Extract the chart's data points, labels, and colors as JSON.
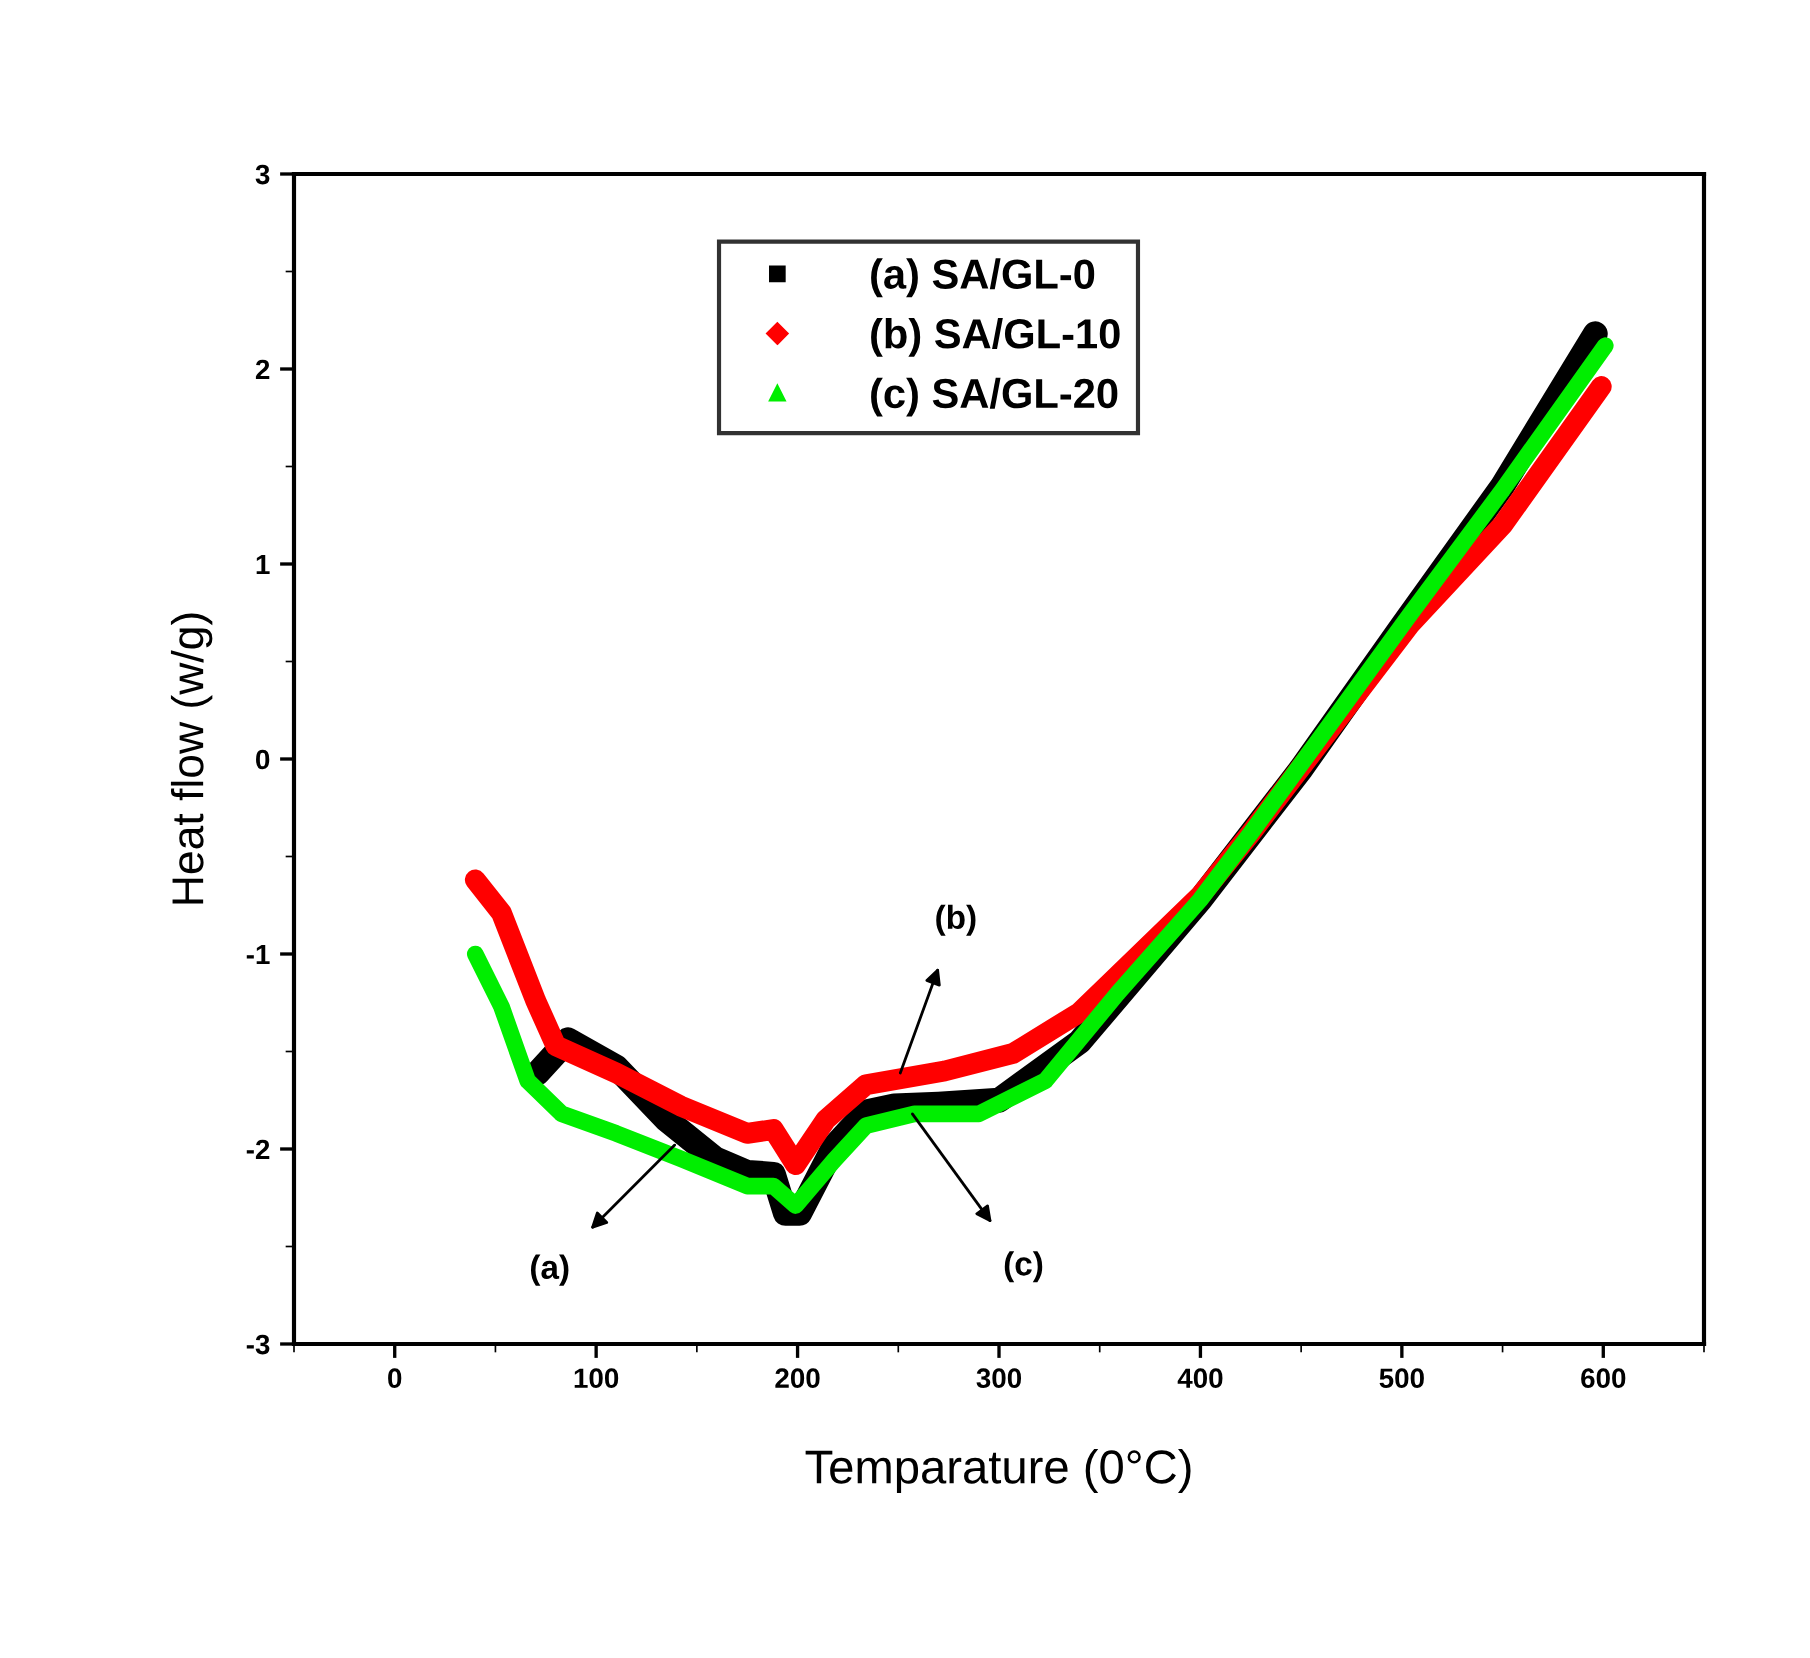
{
  "chart_data": {
    "type": "line",
    "xlabel": "Temparature (0°C)",
    "ylabel": "Heat flow (w/g)",
    "xlim": [
      -50,
      650
    ],
    "xticks": [
      0,
      100,
      200,
      300,
      400,
      500,
      600
    ],
    "ylim": [
      -3,
      3
    ],
    "yticks": [
      -3,
      -2,
      -1,
      0,
      1,
      2,
      3
    ],
    "grid": false,
    "legend": "top",
    "line_style": "solid",
    "series": [
      {
        "name": "(a) SA/GL-0",
        "color": "#000000",
        "marker": "square",
        "x": [
          71,
          86,
          110,
          135,
          159,
          175,
          188,
          194,
          201,
          218,
          234,
          248,
          270,
          300,
          340,
          400,
          450,
          500,
          550,
          596
        ],
        "values": [
          -1.61,
          -1.44,
          -1.58,
          -1.85,
          -2.05,
          -2.12,
          -2.13,
          -2.33,
          -2.33,
          -1.99,
          -1.81,
          -1.78,
          -1.77,
          -1.75,
          -1.45,
          -0.72,
          -0.05,
          0.68,
          1.4,
          2.18
        ]
      },
      {
        "name": "(b) SA/GL-10",
        "color": "#ff0000",
        "marker": "diamond",
        "x": [
          40,
          53,
          70,
          80,
          110,
          142,
          175,
          188,
          199,
          214,
          234,
          273,
          307,
          340,
          359,
          400,
          425,
          504,
          550,
          599
        ],
        "values": [
          -0.62,
          -0.79,
          -1.24,
          -1.47,
          -1.61,
          -1.78,
          -1.92,
          -1.9,
          -2.08,
          -1.85,
          -1.67,
          -1.6,
          -1.51,
          -1.3,
          -1.11,
          -0.7,
          -0.38,
          0.69,
          1.2,
          1.91
        ]
      },
      {
        "name": "(c) SA/GL-20",
        "color": "#00ee00",
        "marker": "triangle",
        "x": [
          40,
          53,
          66,
          83,
          110,
          142,
          175,
          188,
          199,
          218,
          234,
          258,
          290,
          323,
          359,
          400,
          425,
          504,
          550,
          601
        ],
        "values": [
          -1.0,
          -1.27,
          -1.65,
          -1.82,
          -1.92,
          -2.05,
          -2.19,
          -2.19,
          -2.29,
          -2.06,
          -1.88,
          -1.82,
          -1.82,
          -1.65,
          -1.2,
          -0.72,
          -0.38,
          0.74,
          1.38,
          2.12
        ]
      }
    ],
    "annotations": [
      {
        "text": "(a)",
        "x": 139,
        "y": -1.98
      },
      {
        "text": "(b)",
        "x": 251,
        "y": -1.61
      },
      {
        "text": "(c)",
        "x": 257,
        "y": -1.82
      }
    ]
  }
}
